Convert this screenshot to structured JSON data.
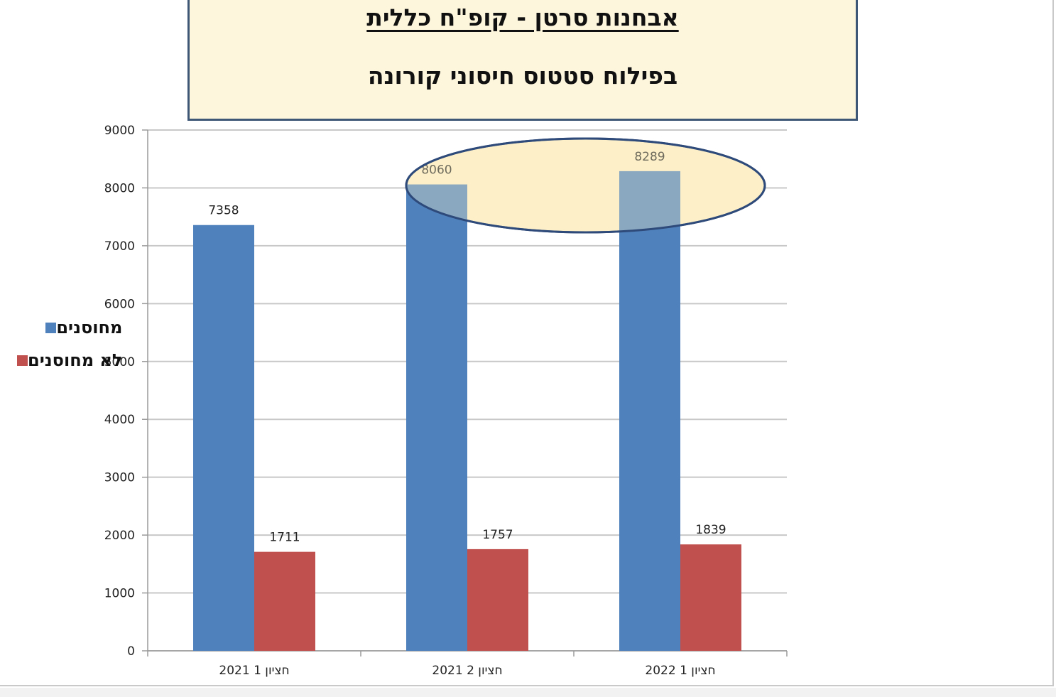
{
  "title": {
    "main": "אבחנות סרטן - קופ\"ח כללית",
    "sub": "בפילוח סטטוס חיסוני קורונה"
  },
  "colors": {
    "title_bg": "#fdf5dc",
    "title_border": "#3f5777",
    "vaccinated": "#4f81bd",
    "unvaccinated": "#c0504d",
    "ellipse_fill": "#fdf0c8",
    "ellipse_stroke": "#2e4a7a"
  },
  "chart_data": {
    "type": "bar",
    "categories": [
      "חציון 1 2021",
      "חציון 2 2021",
      "חציון 1 2022"
    ],
    "series": [
      {
        "name": "מחוסנים",
        "color": "#4f81bd",
        "values": [
          7358,
          8060,
          8289
        ]
      },
      {
        "name": "לא מחוסנים",
        "color": "#c0504d",
        "values": [
          1711,
          1757,
          1839
        ]
      }
    ],
    "ylim": [
      0,
      9000
    ],
    "yticks": [
      0,
      1000,
      2000,
      3000,
      4000,
      5000,
      6000,
      7000,
      8000,
      9000
    ],
    "grid": true,
    "legend": "left",
    "highlight_categories": [
      1,
      2
    ]
  }
}
